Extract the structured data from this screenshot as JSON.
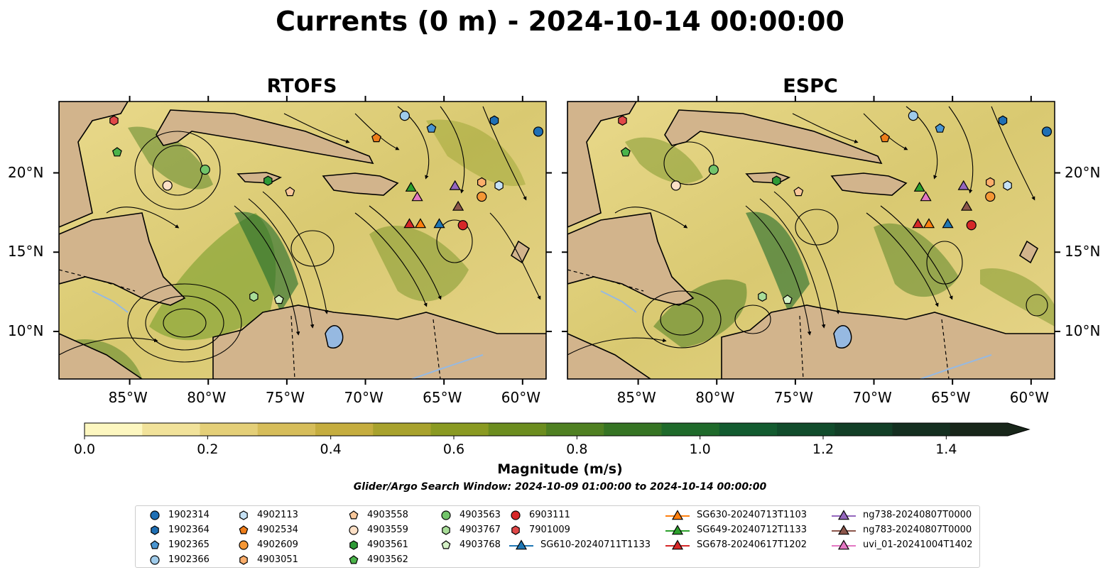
{
  "title": "Currents (0 m) - 2024-10-14 00:00:00",
  "panels": [
    {
      "title": "RTOFS"
    },
    {
      "title": "ESPC"
    }
  ],
  "axes": {
    "lon_labels": [
      "85°W",
      "80°W",
      "75°W",
      "70°W",
      "65°W",
      "60°W"
    ],
    "lat_labels": [
      "20°N",
      "15°N",
      "10°N"
    ],
    "lon_values": [
      -85,
      -80,
      -75,
      -70,
      -65,
      -60
    ],
    "lat_values": [
      20,
      15,
      10
    ],
    "lon_range": [
      -89.5,
      -58.5
    ],
    "lat_range": [
      7,
      24.5
    ]
  },
  "colorbar": {
    "label": "Magnitude (m/s)",
    "range": [
      0,
      1.5
    ],
    "extend": "max",
    "ticks": [
      "0.0",
      "0.2",
      "0.4",
      "0.6",
      "0.8",
      "1.0",
      "1.2",
      "1.4"
    ],
    "tick_values": [
      0,
      0.2,
      0.4,
      0.6,
      0.8,
      1.0,
      1.2,
      1.4
    ],
    "colors": [
      "#fdf7c0",
      "#f1e29a",
      "#e4cf78",
      "#d6bd5a",
      "#c5ad3f",
      "#a8a22d",
      "#8a9a22",
      "#6c8d1f",
      "#4f8022",
      "#367424",
      "#1f6a2b",
      "#135b30",
      "#114c2c",
      "#123f27",
      "#142f20",
      "#18261a"
    ]
  },
  "window_note": "Glider/Argo Search Window: 2024-10-09 01:00:00 to 2024-10-14 00:00:00",
  "colors": {
    "land": "#d2b48c",
    "lake": "#96b9e1"
  },
  "legend": [
    {
      "label": "1902314",
      "marker": "circle",
      "color": "#1f6fb4"
    },
    {
      "label": "1902364",
      "marker": "hexagon",
      "color": "#1f6fb4"
    },
    {
      "label": "1902365",
      "marker": "pentagon",
      "color": "#4a95d0"
    },
    {
      "label": "1902366",
      "marker": "circle",
      "color": "#9fcbea"
    },
    {
      "label": "4902113",
      "marker": "hexagon",
      "color": "#c6e2f5"
    },
    {
      "label": "4902534",
      "marker": "pentagon",
      "color": "#ee7d1a"
    },
    {
      "label": "4902609",
      "marker": "circle",
      "color": "#f59735"
    },
    {
      "label": "4903051",
      "marker": "hexagon",
      "color": "#fcae6b"
    },
    {
      "label": "4903558",
      "marker": "pentagon",
      "color": "#f8c79a"
    },
    {
      "label": "4903559",
      "marker": "circle",
      "color": "#fde0c6"
    },
    {
      "label": "4903561",
      "marker": "hexagon",
      "color": "#2e9a36"
    },
    {
      "label": "4903562",
      "marker": "pentagon",
      "color": "#4bb34a"
    },
    {
      "label": "4903563",
      "marker": "circle",
      "color": "#72c46a"
    },
    {
      "label": "4903767",
      "marker": "hexagon",
      "color": "#a8dd98"
    },
    {
      "label": "4903768",
      "marker": "pentagon",
      "color": "#d4f1c6"
    },
    {
      "label": "6903111",
      "marker": "circle",
      "color": "#d62728"
    },
    {
      "label": "7901009",
      "marker": "hexagon",
      "color": "#e04848"
    },
    {
      "label": "SG610-20240711T1133",
      "marker": "triangle-line",
      "color": "#1f77b4"
    },
    {
      "label": "SG630-20240713T1103",
      "marker": "triangle-line",
      "color": "#ff7f0e"
    },
    {
      "label": "SG649-20240712T1133",
      "marker": "triangle-line",
      "color": "#2ca02c"
    },
    {
      "label": "SG678-20240617T1202",
      "marker": "triangle-line",
      "color": "#d62728"
    },
    {
      "label": "ng738-20240807T0000",
      "marker": "triangle-line",
      "color": "#9467bd"
    },
    {
      "label": "ng783-20240807T0000",
      "marker": "triangle-line",
      "color": "#8c564b"
    },
    {
      "label": "uvi_01-20241004T1402",
      "marker": "triangle-line",
      "color": "#e377c2"
    }
  ],
  "markers": [
    {
      "id": "1902314",
      "lon": -59,
      "lat": 22.6
    },
    {
      "id": "1902364",
      "lon": -61.8,
      "lat": 23.3
    },
    {
      "id": "1902365",
      "lon": -65.8,
      "lat": 22.8
    },
    {
      "id": "1902366",
      "lon": -67.5,
      "lat": 23.6
    },
    {
      "id": "4902113",
      "lon": -61.5,
      "lat": 19.2
    },
    {
      "id": "4902534",
      "lon": -69.3,
      "lat": 22.2
    },
    {
      "id": "4902609",
      "lon": -62.6,
      "lat": 18.5
    },
    {
      "id": "4903051",
      "lon": -62.6,
      "lat": 19.4
    },
    {
      "id": "4903558",
      "lon": -74.8,
      "lat": 18.8
    },
    {
      "id": "4903559",
      "lon": -82.6,
      "lat": 19.2
    },
    {
      "id": "4903561",
      "lon": -76.2,
      "lat": 19.5
    },
    {
      "id": "4903562",
      "lon": -85.8,
      "lat": 21.3
    },
    {
      "id": "4903563",
      "lon": -80.2,
      "lat": 20.2
    },
    {
      "id": "4903767",
      "lon": -77.1,
      "lat": 12.2
    },
    {
      "id": "4903768",
      "lon": -75.5,
      "lat": 12.0
    },
    {
      "id": "6903111",
      "lon": -63.8,
      "lat": 16.7
    },
    {
      "id": "7901009",
      "lon": -86,
      "lat": 23.3
    },
    {
      "id": "SG610-20240711T1133",
      "lon": -65.3,
      "lat": 16.8
    },
    {
      "id": "SG630-20240713T1103",
      "lon": -66.5,
      "lat": 16.8
    },
    {
      "id": "SG649-20240712T1133",
      "lon": -67.1,
      "lat": 19.1
    },
    {
      "id": "SG678-20240617T1202",
      "lon": -67.2,
      "lat": 16.8
    },
    {
      "id": "ng738-20240807T0000",
      "lon": -64.3,
      "lat": 19.2
    },
    {
      "id": "ng783-20240807T0000",
      "lon": -64.1,
      "lat": 17.9
    },
    {
      "id": "uvi_01-20241004T1402",
      "lon": -66.7,
      "lat": 18.5
    }
  ]
}
